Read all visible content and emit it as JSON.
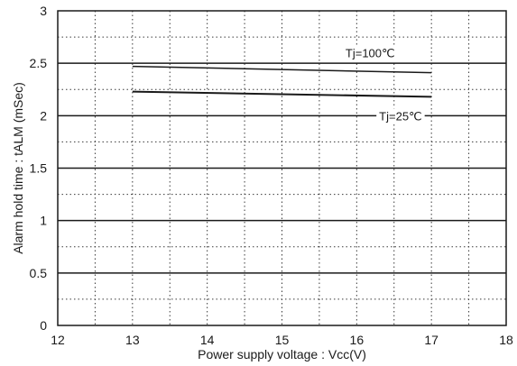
{
  "chart_data": {
    "type": "line",
    "xlabel": "Power supply voltage : Vcc(V)",
    "ylabel": "Alarm hold time : tALM (mSec)",
    "xlim": [
      12,
      18
    ],
    "ylim": [
      0,
      3
    ],
    "x_ticks": [
      "12",
      "13",
      "14",
      "15",
      "16",
      "17",
      "18"
    ],
    "y_ticks": [
      "0",
      "0.5",
      "1",
      "1.5",
      "2",
      "2.5",
      "3"
    ],
    "grid": "dotted major and minor gridlines",
    "series": [
      {
        "name": "Tj=100℃",
        "x": [
          13,
          17
        ],
        "y": [
          2.47,
          2.41
        ]
      },
      {
        "name": "Tj=25℃",
        "x": [
          13,
          17
        ],
        "y": [
          2.23,
          2.18
        ]
      }
    ],
    "colors": {
      "line": "#1a1a1a",
      "grid": "#3a3a3a",
      "background": "#ffffff"
    }
  }
}
